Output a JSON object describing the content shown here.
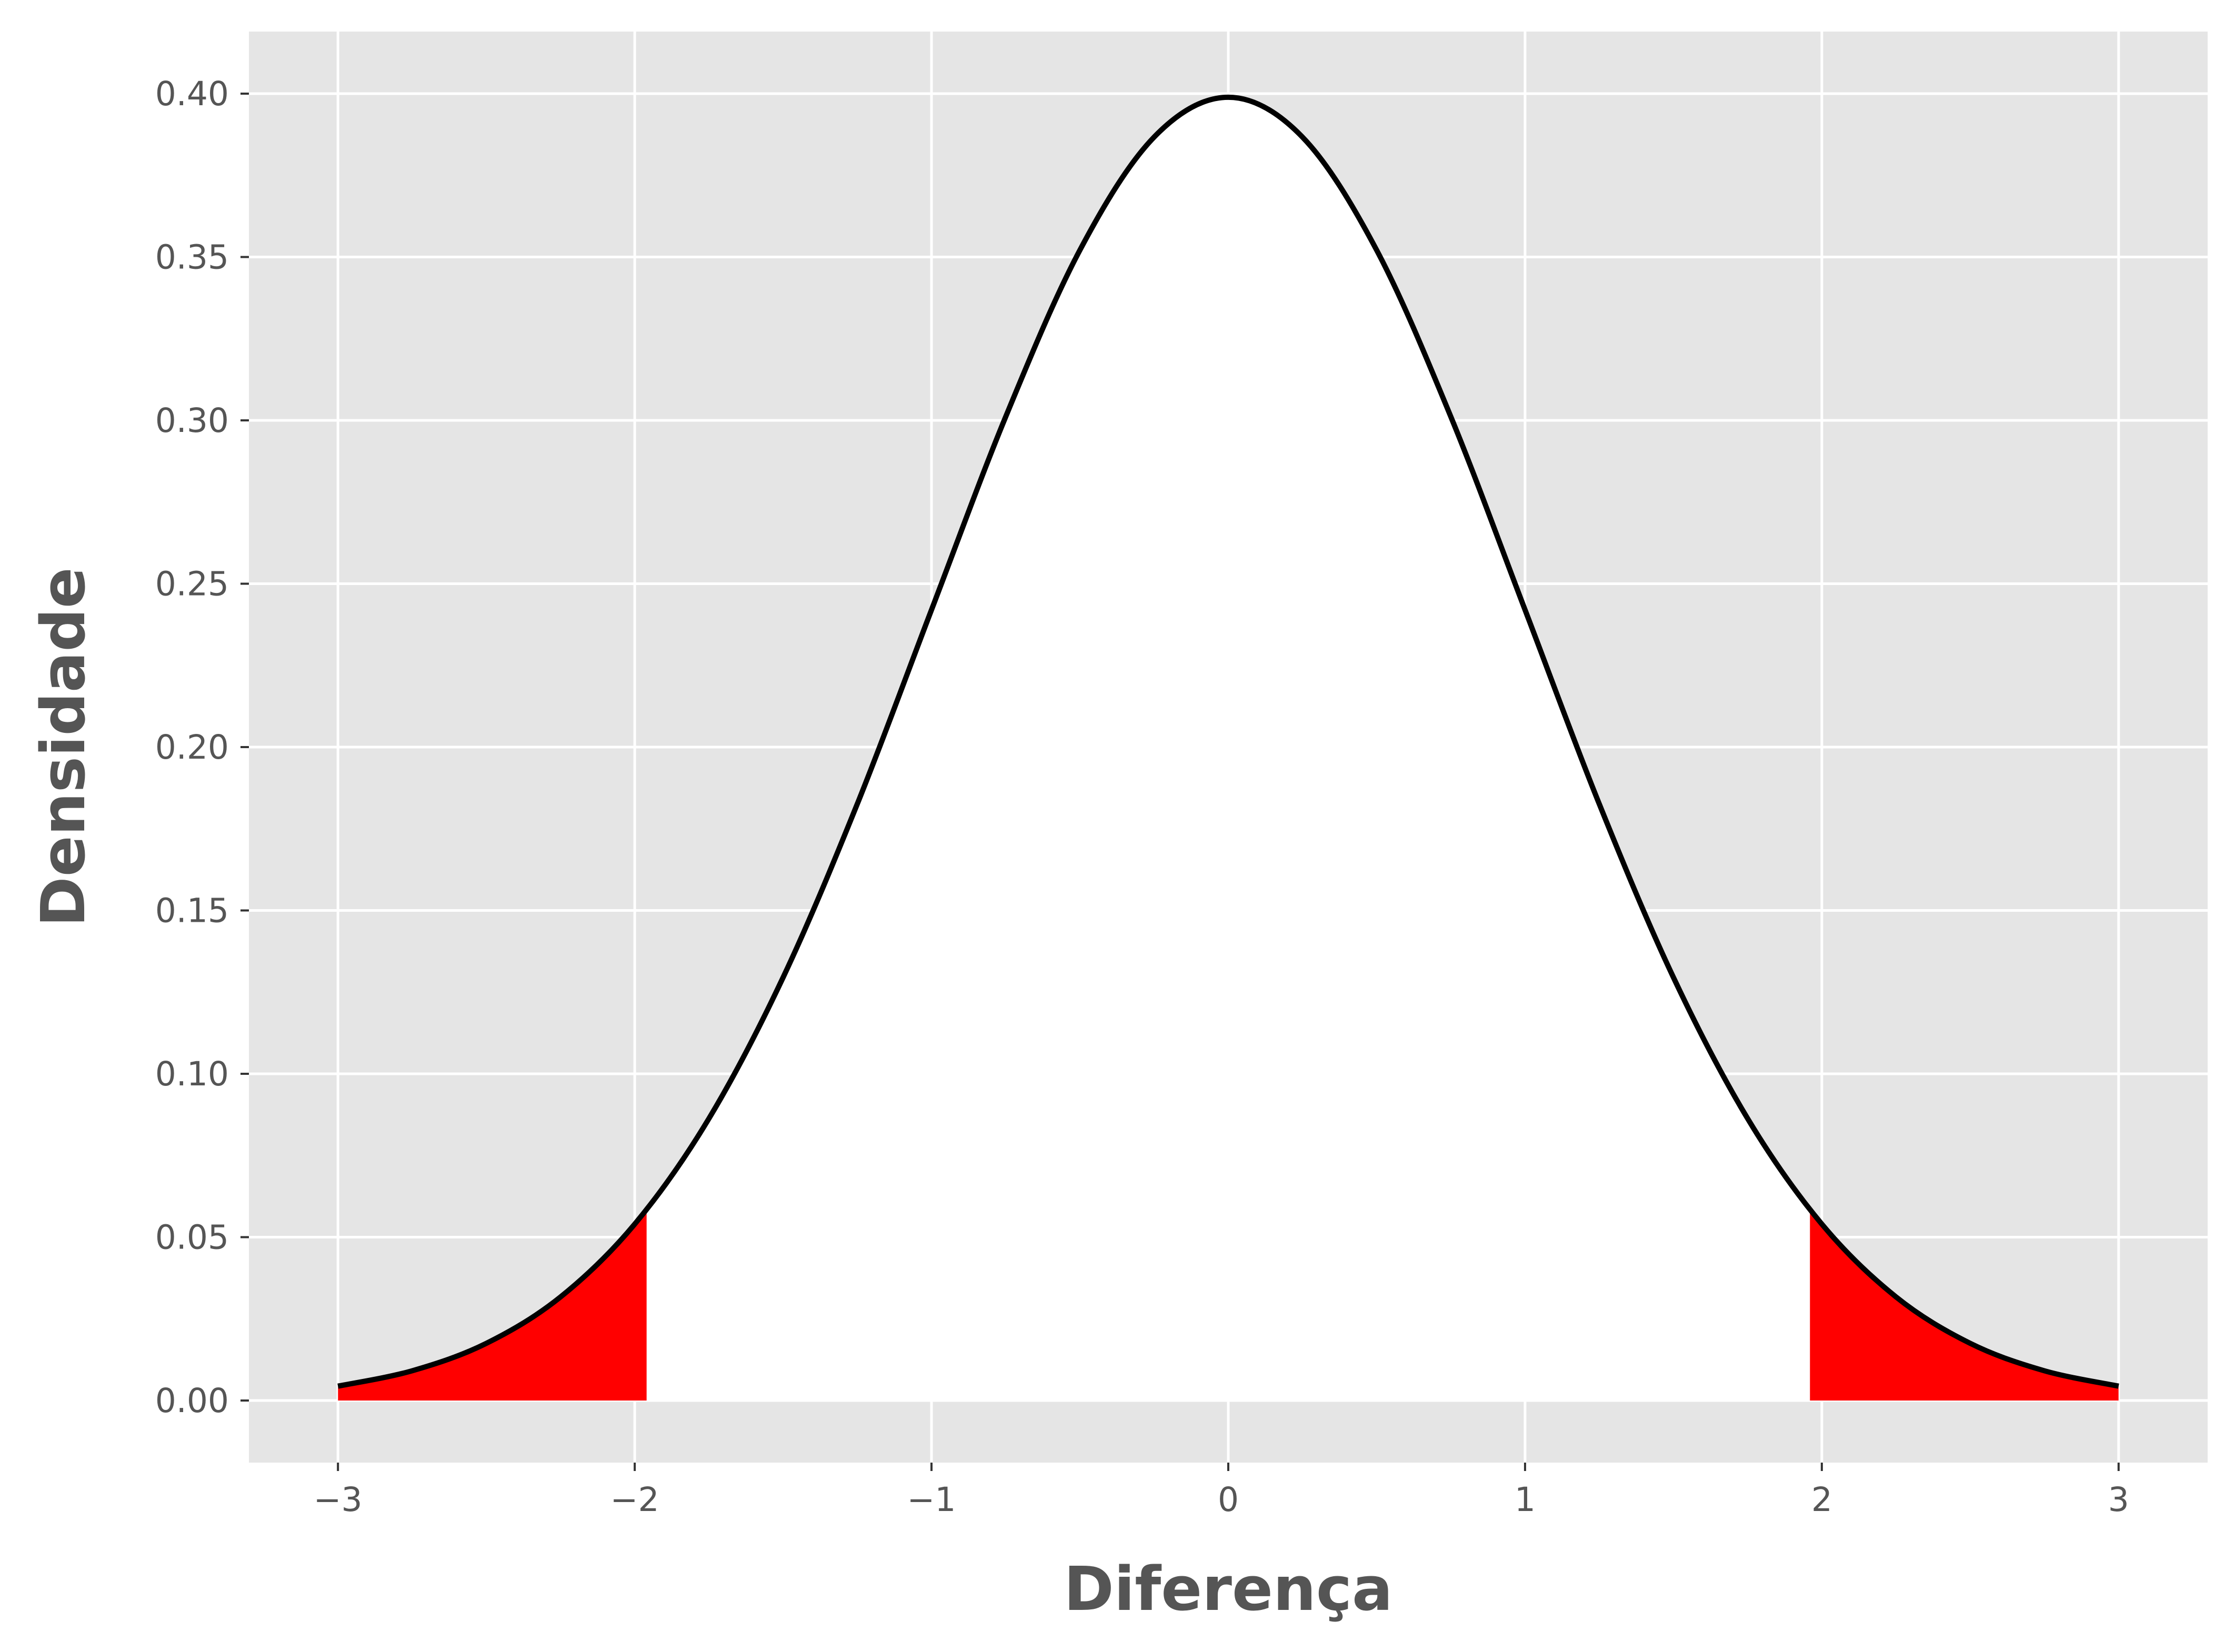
{
  "chart_data": {
    "type": "area",
    "title": "",
    "xlabel": "Diferença",
    "ylabel": "Densidade",
    "xlim": [
      -3.3,
      3.3
    ],
    "ylim": [
      -0.019,
      0.419
    ],
    "xticks": [
      -3,
      -2,
      -1,
      0,
      1,
      2,
      3
    ],
    "xtick_labels": [
      "−3",
      "−2",
      "−1",
      "0",
      "1",
      "2",
      "3"
    ],
    "yticks": [
      0.0,
      0.05,
      0.1,
      0.15,
      0.2,
      0.25,
      0.3,
      0.35,
      0.4
    ],
    "ytick_labels": [
      "0.00",
      "0.05",
      "0.10",
      "0.15",
      "0.20",
      "0.25",
      "0.30",
      "0.35",
      "0.40"
    ],
    "grid": true,
    "series": [
      {
        "x": [
          -3.0,
          -2.75,
          -2.5,
          -2.25,
          -2.0,
          -1.75,
          -1.5,
          -1.25,
          -1.0,
          -0.75,
          -0.5,
          -0.25,
          0.0,
          0.25,
          0.5,
          0.75,
          1.0,
          1.25,
          1.5,
          1.75,
          2.0,
          2.25,
          2.5,
          2.75,
          3.0
        ],
        "y": [
          0.0044,
          0.0091,
          0.0175,
          0.0317,
          0.054,
          0.0863,
          0.1295,
          0.1826,
          0.242,
          0.3011,
          0.3521,
          0.3867,
          0.3989,
          0.3867,
          0.3521,
          0.3011,
          0.242,
          0.1826,
          0.1295,
          0.0863,
          0.054,
          0.0317,
          0.0175,
          0.0091,
          0.0044
        ]
      }
    ],
    "shaded_regions": [
      {
        "x_from": -3.0,
        "x_to": -1.96
      },
      {
        "x_from": 1.96,
        "x_to": 3.0
      }
    ],
    "colors": {
      "panel_background": "#e5e5e5",
      "grid": "#ffffff",
      "curve_fill": "#ffffff",
      "curve_line": "#000000",
      "tail_fill": "#ff0000",
      "text": "#555555"
    }
  }
}
